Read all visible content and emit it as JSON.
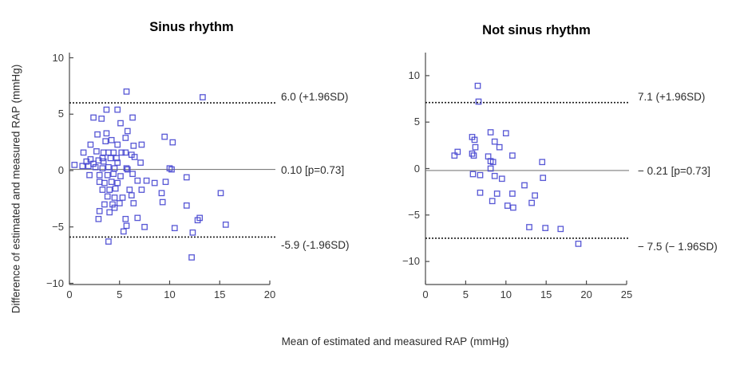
{
  "figure": {
    "xlabel": "Mean of estimated and measured RAP (mmHg)",
    "ylabel": "Difference of estimated and measured RAP (mmHg)",
    "marker_color": "#4545d0",
    "mean_line_color": "#7d7d7d",
    "loa_line_color": "#1c1c1c"
  },
  "chart_data": [
    {
      "type": "scatter",
      "title": "Sinus rhythm",
      "xlabel": "Mean of estimated and measured RAP (mmHg)",
      "ylabel": "Difference of estimated and measured RAP (mmHg)",
      "xlim": [
        0,
        20
      ],
      "ylim": [
        -10,
        10
      ],
      "xticks": [
        0,
        5,
        10,
        15,
        20
      ],
      "yticks": [
        10,
        5,
        0,
        -5,
        -10
      ],
      "xtick_labels": [
        "0",
        "5",
        "10",
        "15",
        "20"
      ],
      "ytick_labels": [
        "10",
        "5",
        "0",
        "−5",
        "−10"
      ],
      "legend": "none",
      "grid": false,
      "mean_line": {
        "value": 0.1,
        "label": "0.10 [p=0.73]"
      },
      "upper_loa": {
        "value": 6.0,
        "label": "6.0 (+1.96SD)"
      },
      "lower_loa": {
        "value": -5.9,
        "label": "-5.9 (-1.96SD)"
      },
      "points": [
        [
          5.7,
          7.0
        ],
        [
          13.3,
          6.5
        ],
        [
          3.7,
          5.4
        ],
        [
          4.8,
          5.4
        ],
        [
          2.4,
          4.7
        ],
        [
          3.2,
          4.6
        ],
        [
          6.3,
          4.7
        ],
        [
          5.1,
          4.2
        ],
        [
          5.8,
          3.5
        ],
        [
          3.7,
          3.3
        ],
        [
          2.8,
          3.2
        ],
        [
          9.5,
          3.0
        ],
        [
          5.6,
          2.9
        ],
        [
          4.2,
          2.7
        ],
        [
          3.6,
          2.6
        ],
        [
          10.3,
          2.5
        ],
        [
          2.1,
          2.3
        ],
        [
          4.8,
          2.3
        ],
        [
          6.4,
          2.2
        ],
        [
          7.2,
          2.3
        ],
        [
          1.4,
          1.6
        ],
        [
          2.7,
          1.7
        ],
        [
          3.4,
          1.6
        ],
        [
          3.9,
          1.6
        ],
        [
          4.4,
          1.6
        ],
        [
          5.2,
          1.6
        ],
        [
          5.6,
          1.6
        ],
        [
          6.2,
          1.4
        ],
        [
          2.1,
          1.0
        ],
        [
          2.9,
          0.9
        ],
        [
          3.3,
          1.1
        ],
        [
          4.1,
          1.1
        ],
        [
          4.7,
          1.1
        ],
        [
          6.5,
          1.2
        ],
        [
          1.7,
          0.8
        ],
        [
          2.4,
          0.6
        ],
        [
          3.4,
          0.8
        ],
        [
          4.8,
          0.7
        ],
        [
          7.1,
          0.7
        ],
        [
          0.5,
          0.5
        ],
        [
          1.3,
          0.4
        ],
        [
          1.9,
          0.4
        ],
        [
          2.6,
          0.3
        ],
        [
          3.3,
          0.2
        ],
        [
          3.9,
          0.3
        ],
        [
          4.5,
          0.2
        ],
        [
          5.7,
          0.2
        ],
        [
          5.8,
          0.1
        ],
        [
          10.0,
          0.2
        ],
        [
          10.2,
          0.1
        ],
        [
          2.0,
          -0.4
        ],
        [
          3.0,
          -0.4
        ],
        [
          3.8,
          -0.4
        ],
        [
          4.4,
          -0.3
        ],
        [
          5.1,
          -0.5
        ],
        [
          6.3,
          -0.3
        ],
        [
          11.7,
          -0.6
        ],
        [
          3.0,
          -1.0
        ],
        [
          3.5,
          -1.1
        ],
        [
          4.2,
          -1.0
        ],
        [
          4.8,
          -1.1
        ],
        [
          6.8,
          -0.9
        ],
        [
          7.7,
          -0.9
        ],
        [
          8.5,
          -1.1
        ],
        [
          9.6,
          -1.0
        ],
        [
          3.3,
          -1.7
        ],
        [
          4.0,
          -1.7
        ],
        [
          4.6,
          -1.6
        ],
        [
          6.0,
          -1.7
        ],
        [
          7.2,
          -1.7
        ],
        [
          9.2,
          -2.0
        ],
        [
          15.1,
          -2.0
        ],
        [
          3.8,
          -2.3
        ],
        [
          4.5,
          -2.4
        ],
        [
          5.3,
          -2.4
        ],
        [
          6.2,
          -2.2
        ],
        [
          3.5,
          -3.0
        ],
        [
          4.3,
          -3.0
        ],
        [
          5.0,
          -2.9
        ],
        [
          6.4,
          -2.9
        ],
        [
          9.3,
          -2.8
        ],
        [
          11.7,
          -3.1
        ],
        [
          4.5,
          -3.3
        ],
        [
          3.0,
          -3.6
        ],
        [
          4.0,
          -3.7
        ],
        [
          2.9,
          -4.3
        ],
        [
          5.6,
          -4.3
        ],
        [
          6.8,
          -4.2
        ],
        [
          12.8,
          -4.4
        ],
        [
          13.0,
          -4.2
        ],
        [
          5.7,
          -4.9
        ],
        [
          7.5,
          -5.0
        ],
        [
          15.6,
          -4.8
        ],
        [
          5.4,
          -5.4
        ],
        [
          10.5,
          -5.1
        ],
        [
          12.3,
          -5.5
        ],
        [
          3.9,
          -6.3
        ],
        [
          12.2,
          -7.7
        ]
      ]
    },
    {
      "type": "scatter",
      "title": "Not sinus rhythm",
      "xlabel": "Mean of estimated and measured RAP (mmHg)",
      "ylabel": "Difference of estimated and measured RAP (mmHg)",
      "xlim": [
        0,
        25
      ],
      "ylim": [
        -10,
        10
      ],
      "xticks": [
        0,
        5,
        10,
        15,
        20,
        25
      ],
      "yticks": [
        10,
        5,
        0,
        -5,
        -10
      ],
      "xtick_labels": [
        "0",
        "5",
        "10",
        "15",
        "20",
        "25"
      ],
      "ytick_labels": [
        "10",
        "5",
        "0",
        "−5",
        "−10"
      ],
      "legend": "none",
      "grid": false,
      "mean_line": {
        "value": -0.21,
        "label": "− 0.21 [p=0.73]"
      },
      "upper_loa": {
        "value": 7.1,
        "label": "7.1 (+1.96SD)"
      },
      "lower_loa": {
        "value": -7.5,
        "label": "− 7.5 (− 1.96SD)"
      },
      "points": [
        [
          6.5,
          8.9
        ],
        [
          6.6,
          7.2
        ],
        [
          8.1,
          3.9
        ],
        [
          10.0,
          3.8
        ],
        [
          5.8,
          3.4
        ],
        [
          6.1,
          3.1
        ],
        [
          8.6,
          2.9
        ],
        [
          6.2,
          2.3
        ],
        [
          9.2,
          2.3
        ],
        [
          4.0,
          1.8
        ],
        [
          5.8,
          1.6
        ],
        [
          3.6,
          1.4
        ],
        [
          6.0,
          1.4
        ],
        [
          10.8,
          1.4
        ],
        [
          7.8,
          1.3
        ],
        [
          8.1,
          0.8
        ],
        [
          8.4,
          0.7
        ],
        [
          14.5,
          0.7
        ],
        [
          8.1,
          0.0
        ],
        [
          5.9,
          -0.6
        ],
        [
          6.8,
          -0.7
        ],
        [
          8.6,
          -0.8
        ],
        [
          9.5,
          -1.1
        ],
        [
          14.6,
          -1.0
        ],
        [
          12.3,
          -1.8
        ],
        [
          6.8,
          -2.6
        ],
        [
          8.9,
          -2.7
        ],
        [
          10.8,
          -2.7
        ],
        [
          13.6,
          -2.9
        ],
        [
          8.3,
          -3.5
        ],
        [
          13.2,
          -3.7
        ],
        [
          10.2,
          -4.0
        ],
        [
          10.9,
          -4.2
        ],
        [
          12.9,
          -6.3
        ],
        [
          14.9,
          -6.4
        ],
        [
          16.8,
          -6.5
        ],
        [
          19.0,
          -8.1
        ]
      ]
    }
  ]
}
